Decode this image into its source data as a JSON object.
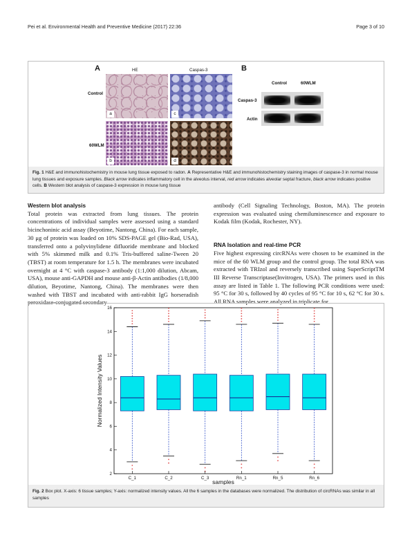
{
  "header": {
    "journal_left": "Pei et al. Environmental Health and Preventive Medicine (2017) 22:36",
    "page": "Page 3 of 10"
  },
  "figure1": {
    "panel_a": "A",
    "panel_b": "B",
    "col_he": "HE",
    "col_caspase": "Caspas-3",
    "row_control": "Control",
    "row_wlm": "60WLM",
    "sub_a": "a",
    "sub_b": "b",
    "sub_c": "c",
    "sub_d": "d",
    "blot_col_control": "Control",
    "blot_col_wlm": "60WLM",
    "blot_row_caspase": "Caspas-3",
    "blot_row_actin": "Actin",
    "caption": {
      "label": "Fig. 1",
      "t1": "H&E and immunohistochemistry in mouse lung tissue exposed to radon.",
      "a": "A",
      "t2": "Representative H&E and immunohistochemistry staining images of caspase-3 in normal mouse lung tissues and exposure samples.",
      "black_arrow1": "Black arrow",
      "t3": "indicates inflammatory cell in the alveolus interval,",
      "red_arrow": "red arrow",
      "t4": "indicates alveolar septal fracture,",
      "black_arrow2": "black arrow",
      "t5": "indicates positive cells.",
      "b": "B",
      "t6": "Western blot analysis of caspase-3 expression in mouse lung tissue"
    }
  },
  "left_column": {
    "heading": "Western blot analysis",
    "body": "Total protein was extracted from lung tissues. The protein concentrations of individual samples were assessed using a standard bicinchoninic acid assay (Beyotime, Nantong, China). For each sample, 30 μg of protein was loaded on 10% SDS-PAGE gel (Bio-Rad, USA), transferred onto a polyvinylidene difluoride membrane and blocked with 5% skimmed milk and 0.1% Tris-buffered saline-Tween 20 (TBST) at room temperature for 1.5 h. The membranes were incubated overnight at 4 °C with caspase-3 antibody (1:1,000 dilution, Abcam, USA), mouse anti-GAPDH and mouse anti-β-Actin antibodies (1/8,000 dilution, Beyotime, Nantong, China). The membranes were then washed with TBST and incubated with anti-rabbit IgG horseradish peroxidase-conjugated secondary"
  },
  "right_column": {
    "continuation": "antibody (Cell Signaling Technology, Boston, MA). The protein expression was evaluated using chemiluminescence and exposure to Kodak film (Kodak, Rochester, NY).",
    "heading": "RNA Isolation and real-time PCR",
    "body": "Five highest expressing circRNAs were chosen to be examined in the mice of the 60 WLM group and the control group. The total RNA was extracted with TRIzol and reversely transcribed using SuperScriptTM III Reverse Transcriptase(Invitrogen, USA). The primers used in this assay are listed in Table 1. The following PCR conditions were used: 95 °C for 30 s, followed by 40 cycles of 95 °C for 10 s, 62 °C for 30 s. All RNA samples were analyzed in triplicate for"
  },
  "figure2": {
    "caption_label": "Fig. 2",
    "caption_text": "Box plot. X-axis: 6 tissue samples; Y-axis: normalized intensity values. All the 6 samples in the databases were normalized. The distribution of circRNAs was similar in all samples"
  },
  "chart_data": {
    "type": "box",
    "categories": [
      "C_1",
      "C_2",
      "C_3",
      "Rn_1",
      "Rn_5",
      "Rn_6"
    ],
    "xlabel": "samples",
    "ylabel": "Normalized Intensity Values",
    "ylim": [
      2,
      16
    ],
    "yticks": [
      2,
      4,
      6,
      8,
      10,
      12,
      14,
      16
    ],
    "box_color": "#00e5ee",
    "series": [
      {
        "values": {
          "whisker_low": 3.0,
          "q1": 7.3,
          "median": 8.4,
          "q3": 10.2,
          "whisker_high": 14.4
        }
      },
      {
        "values": {
          "whisker_low": 3.5,
          "q1": 7.4,
          "median": 8.3,
          "q3": 10.3,
          "whisker_high": 14.6
        }
      },
      {
        "values": {
          "whisker_low": 2.8,
          "q1": 7.3,
          "median": 8.4,
          "q3": 10.4,
          "whisker_high": 14.9
        }
      },
      {
        "values": {
          "whisker_low": 3.1,
          "q1": 7.3,
          "median": 8.4,
          "q3": 10.3,
          "whisker_high": 14.6
        }
      },
      {
        "values": {
          "whisker_low": 3.7,
          "q1": 7.4,
          "median": 8.5,
          "q3": 10.4,
          "whisker_high": 14.7
        }
      },
      {
        "values": {
          "whisker_low": 3.1,
          "q1": 7.4,
          "median": 8.4,
          "q3": 10.4,
          "whisker_high": 14.6
        }
      }
    ]
  }
}
